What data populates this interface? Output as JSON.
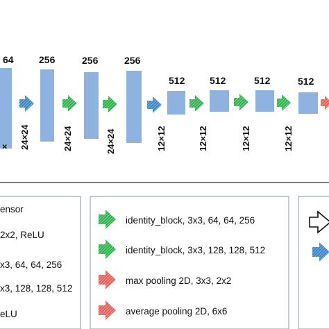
{
  "colors": {
    "block": "#8fb3e0",
    "block_stroke": "#7fa4d6",
    "green_arrow": "#2fb34f",
    "blue_arrow": "#3b86c6",
    "red_arrow": "#e0625a",
    "panel_border": "#9aa8b8",
    "divider": "#2b2b2b"
  },
  "network": {
    "stages": [
      {
        "channels": "64",
        "size": ""
      },
      {
        "channels": "256",
        "size": "24×24"
      },
      {
        "channels": "256",
        "size": "24×24"
      },
      {
        "channels": "256",
        "size": "24×24"
      },
      {
        "channels": "512",
        "size": "12×12"
      },
      {
        "channels": "512",
        "size": "12×12"
      },
      {
        "channels": "512",
        "size": "12×12"
      },
      {
        "channels": "512",
        "size": "12×12"
      }
    ]
  },
  "legend": {
    "left_fragments": [
      "ensor",
      "2x2, ReLU",
      "x3, 64, 64, 256",
      "x3, 128, 128, 512",
      "eLU"
    ],
    "items": [
      {
        "icon": "green-arrow-icon",
        "label": "identity_block, 3x3, 64, 64, 256"
      },
      {
        "icon": "green-arrow-icon",
        "label": "identity_block, 3x3, 128, 128, 512"
      },
      {
        "icon": "red-arrow-icon",
        "label": "max pooling 2D, 3x3, 2x2"
      },
      {
        "icon": "red-arrow-icon",
        "label": "average pooling 2D, 6x6"
      }
    ],
    "right_icons": [
      "outline-arrow-icon",
      "blue-arrow-icon"
    ]
  }
}
